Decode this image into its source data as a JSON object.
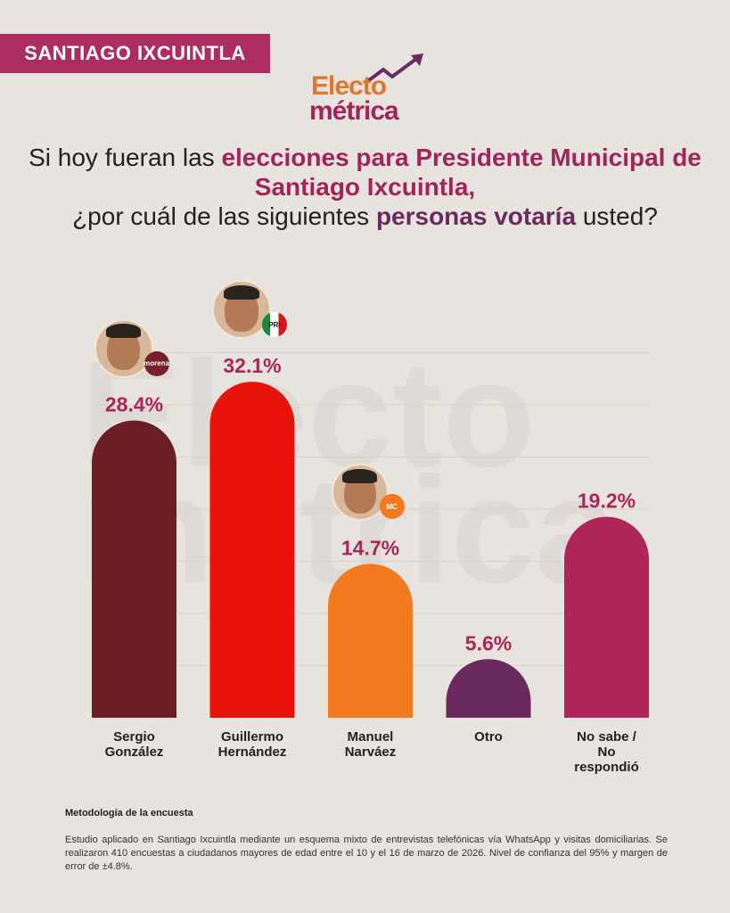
{
  "header": {
    "location_tag": "SANTIAGO IXCUINTLA",
    "logo_line1": "Electo",
    "logo_line2": "métrica"
  },
  "question": {
    "part1": "Si hoy fueran las ",
    "highlight1": "elecciones para Presidente Municipal de Santiago Ixcuintla,",
    "part2": "¿por cuál de las siguientes ",
    "highlight2": "personas votaría",
    "part3": " usted?"
  },
  "watermark": "Electo métrica",
  "chart_data": {
    "type": "bar",
    "title": "Si hoy fueran las elecciones para Presidente Municipal de Santiago Ixcuintla, ¿por cuál de las siguientes personas votaría usted?",
    "categories": [
      "Sergio González",
      "Guillermo Hernández",
      "Manuel Narváez",
      "Otro",
      "No sabe / No respondió"
    ],
    "label_lines": [
      [
        "Sergio",
        "González"
      ],
      [
        "Guillermo",
        "Hernández"
      ],
      [
        "Manuel",
        "Narváez"
      ],
      [
        "Otro"
      ],
      [
        "No sabe /",
        "No",
        "respondió"
      ]
    ],
    "values": [
      28.4,
      32.1,
      14.7,
      5.6,
      19.2
    ],
    "data_labels": [
      "28.4%",
      "32.1%",
      "14.7%",
      "5.6%",
      "19.2%"
    ],
    "colors": [
      "#6b1f24",
      "#e8140c",
      "#f47a20",
      "#6a2a5e",
      "#ad2559"
    ],
    "parties": [
      "morena",
      "PRI",
      "MC",
      "",
      ""
    ],
    "party_colors": [
      "#7a1e2a",
      "#ffffff",
      "#f47a20",
      "",
      ""
    ],
    "label_color": "#ad2559",
    "ylim": [
      0,
      35
    ],
    "grid": true,
    "xlabel": "",
    "ylabel": ""
  },
  "methodology": {
    "title": "Metodología de la encuesta",
    "text": "Estudio aplicado en Santiago Ixcuintla mediante un esquema mixto de entrevistas telefónicas vía WhatsApp y visitas domiciliarias. Se realizaron 410 encuestas a ciudadanos mayores de edad entre el 10 y el 16 de marzo de 2026. Nivel de confianza del 95% y margen de error de ±4.8%."
  }
}
